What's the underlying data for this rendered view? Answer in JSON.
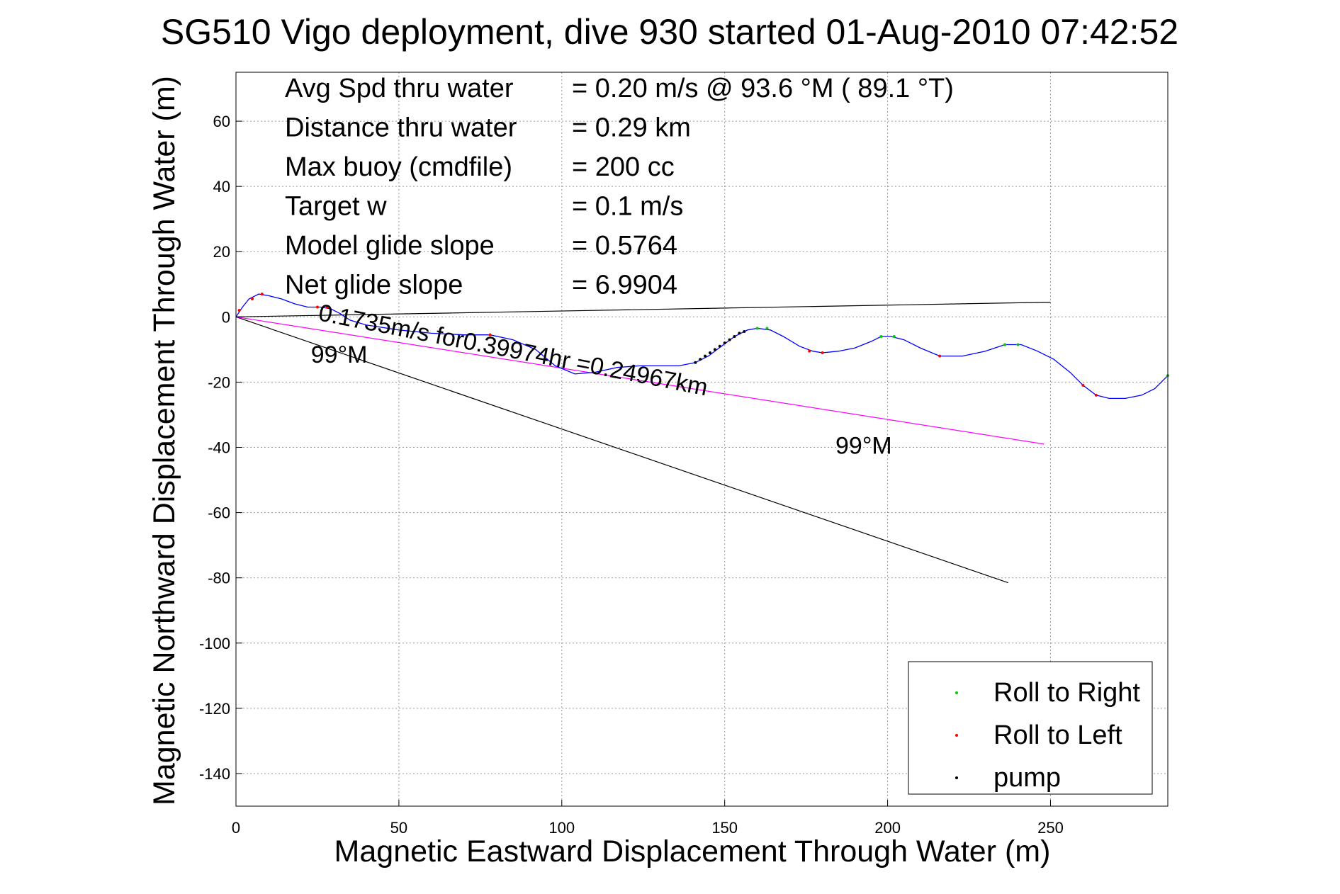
{
  "chart_data": {
    "type": "line",
    "title": "SG510 Vigo deployment, dive 930 started 01-Aug-2010 07:42:52",
    "xlabel": "Magnetic Eastward Displacement Through Water (m)",
    "ylabel": "Magnetic Northward Displacement Through Water (m)",
    "xlim": [
      0,
      286
    ],
    "ylim": [
      -150,
      75
    ],
    "xticks": [
      0,
      50,
      100,
      150,
      200,
      250
    ],
    "yticks": [
      60,
      40,
      20,
      0,
      -20,
      -40,
      -60,
      -80,
      -100,
      -120,
      -140
    ],
    "grid": true,
    "legend_position": "bottom-right",
    "info": [
      {
        "label": "Avg Spd thru water",
        "value": "=  0.20 m/s @  93.6 °M ( 89.1 °T)"
      },
      {
        "label": "Distance thru water",
        "value": "=  0.29 km"
      },
      {
        "label": "Max buoy (cmdfile)",
        "value": "= 200 cc"
      },
      {
        "label": "Target w",
        "value": "= 0.1 m/s"
      },
      {
        "label": "Model glide slope",
        "value": "= 0.5764"
      },
      {
        "label": "Net glide slope",
        "value": "= 6.9904"
      }
    ],
    "annotations": [
      {
        "text": "0.1735m/s for0.39974hr =0.24967km",
        "x": 25,
        "y": -1,
        "rotation_deg": 11
      },
      {
        "text": "99°M",
        "x": 23,
        "y": -14
      },
      {
        "text": "99°M",
        "x": 184,
        "y": -42
      }
    ],
    "track": {
      "color": "#0000ff",
      "points": [
        [
          0,
          0
        ],
        [
          2,
          3
        ],
        [
          4,
          5.5
        ],
        [
          7,
          7
        ],
        [
          10,
          6.5
        ],
        [
          14,
          5.5
        ],
        [
          18,
          4
        ],
        [
          22,
          3
        ],
        [
          26,
          3
        ],
        [
          29,
          2.5
        ],
        [
          32,
          1
        ],
        [
          35,
          -1
        ],
        [
          40,
          -2.5
        ],
        [
          50,
          -4
        ],
        [
          60,
          -5
        ],
        [
          70,
          -5.5
        ],
        [
          78,
          -5.5
        ],
        [
          85,
          -7
        ],
        [
          92,
          -10
        ],
        [
          98,
          -15
        ],
        [
          104,
          -17.5
        ],
        [
          110,
          -17
        ],
        [
          117,
          -15.5
        ],
        [
          124,
          -15
        ],
        [
          130,
          -15
        ],
        [
          136,
          -15
        ],
        [
          141,
          -14
        ],
        [
          145,
          -12
        ],
        [
          149,
          -9
        ],
        [
          153,
          -6
        ],
        [
          157,
          -4
        ],
        [
          160,
          -3.5
        ],
        [
          164,
          -4
        ],
        [
          168,
          -6
        ],
        [
          173,
          -9
        ],
        [
          177,
          -10.5
        ],
        [
          180,
          -11
        ],
        [
          185,
          -10.5
        ],
        [
          190,
          -9.5
        ],
        [
          195,
          -7.5
        ],
        [
          198,
          -6
        ],
        [
          201,
          -6
        ],
        [
          205,
          -7
        ],
        [
          210,
          -9.5
        ],
        [
          216,
          -12
        ],
        [
          223,
          -12
        ],
        [
          230,
          -10.5
        ],
        [
          236,
          -8.5
        ],
        [
          241,
          -8.5
        ],
        [
          246,
          -10.5
        ],
        [
          251,
          -13
        ],
        [
          256,
          -17
        ],
        [
          260,
          -21
        ],
        [
          264,
          -24
        ],
        [
          268,
          -25
        ],
        [
          273,
          -25
        ],
        [
          278,
          -24
        ],
        [
          282,
          -22
        ],
        [
          286,
          -18
        ]
      ]
    },
    "lines": [
      {
        "name": "",
        "color": "#000000",
        "points": [
          [
            0,
            0
          ],
          [
            250,
            4.5
          ]
        ]
      },
      {
        "name": "",
        "color": "#000000",
        "points": [
          [
            0,
            0
          ],
          [
            237,
            -81.5
          ]
        ]
      },
      {
        "name": "",
        "color": "#ff00ff",
        "points": [
          [
            0,
            0
          ],
          [
            248,
            -39
          ]
        ]
      }
    ],
    "series": [
      {
        "name": "Roll to Right",
        "color": "#00cc00",
        "points": [
          [
            160,
            -3.5
          ],
          [
            163,
            -3.5
          ],
          [
            198,
            -6
          ],
          [
            202,
            -6
          ],
          [
            236,
            -8.5
          ],
          [
            240,
            -8.5
          ],
          [
            286,
            -18
          ]
        ]
      },
      {
        "name": "Roll to Left",
        "color": "#ff0000",
        "points": [
          [
            1,
            2
          ],
          [
            5,
            5.5
          ],
          [
            8,
            7
          ],
          [
            25,
            3
          ],
          [
            28,
            3
          ],
          [
            78,
            -5.5
          ],
          [
            176,
            -10.5
          ],
          [
            180,
            -11
          ],
          [
            216,
            -12
          ],
          [
            260,
            -21
          ],
          [
            264,
            -24
          ]
        ]
      },
      {
        "name": "pump",
        "color": "#000000",
        "points": [
          [
            141,
            -14
          ],
          [
            142.5,
            -13
          ],
          [
            144,
            -12
          ],
          [
            145.5,
            -11
          ],
          [
            147,
            -10
          ],
          [
            148.5,
            -9
          ],
          [
            150,
            -8
          ],
          [
            151.5,
            -7
          ],
          [
            153,
            -6
          ],
          [
            154.5,
            -5
          ],
          [
            156,
            -4.5
          ]
        ]
      }
    ]
  }
}
